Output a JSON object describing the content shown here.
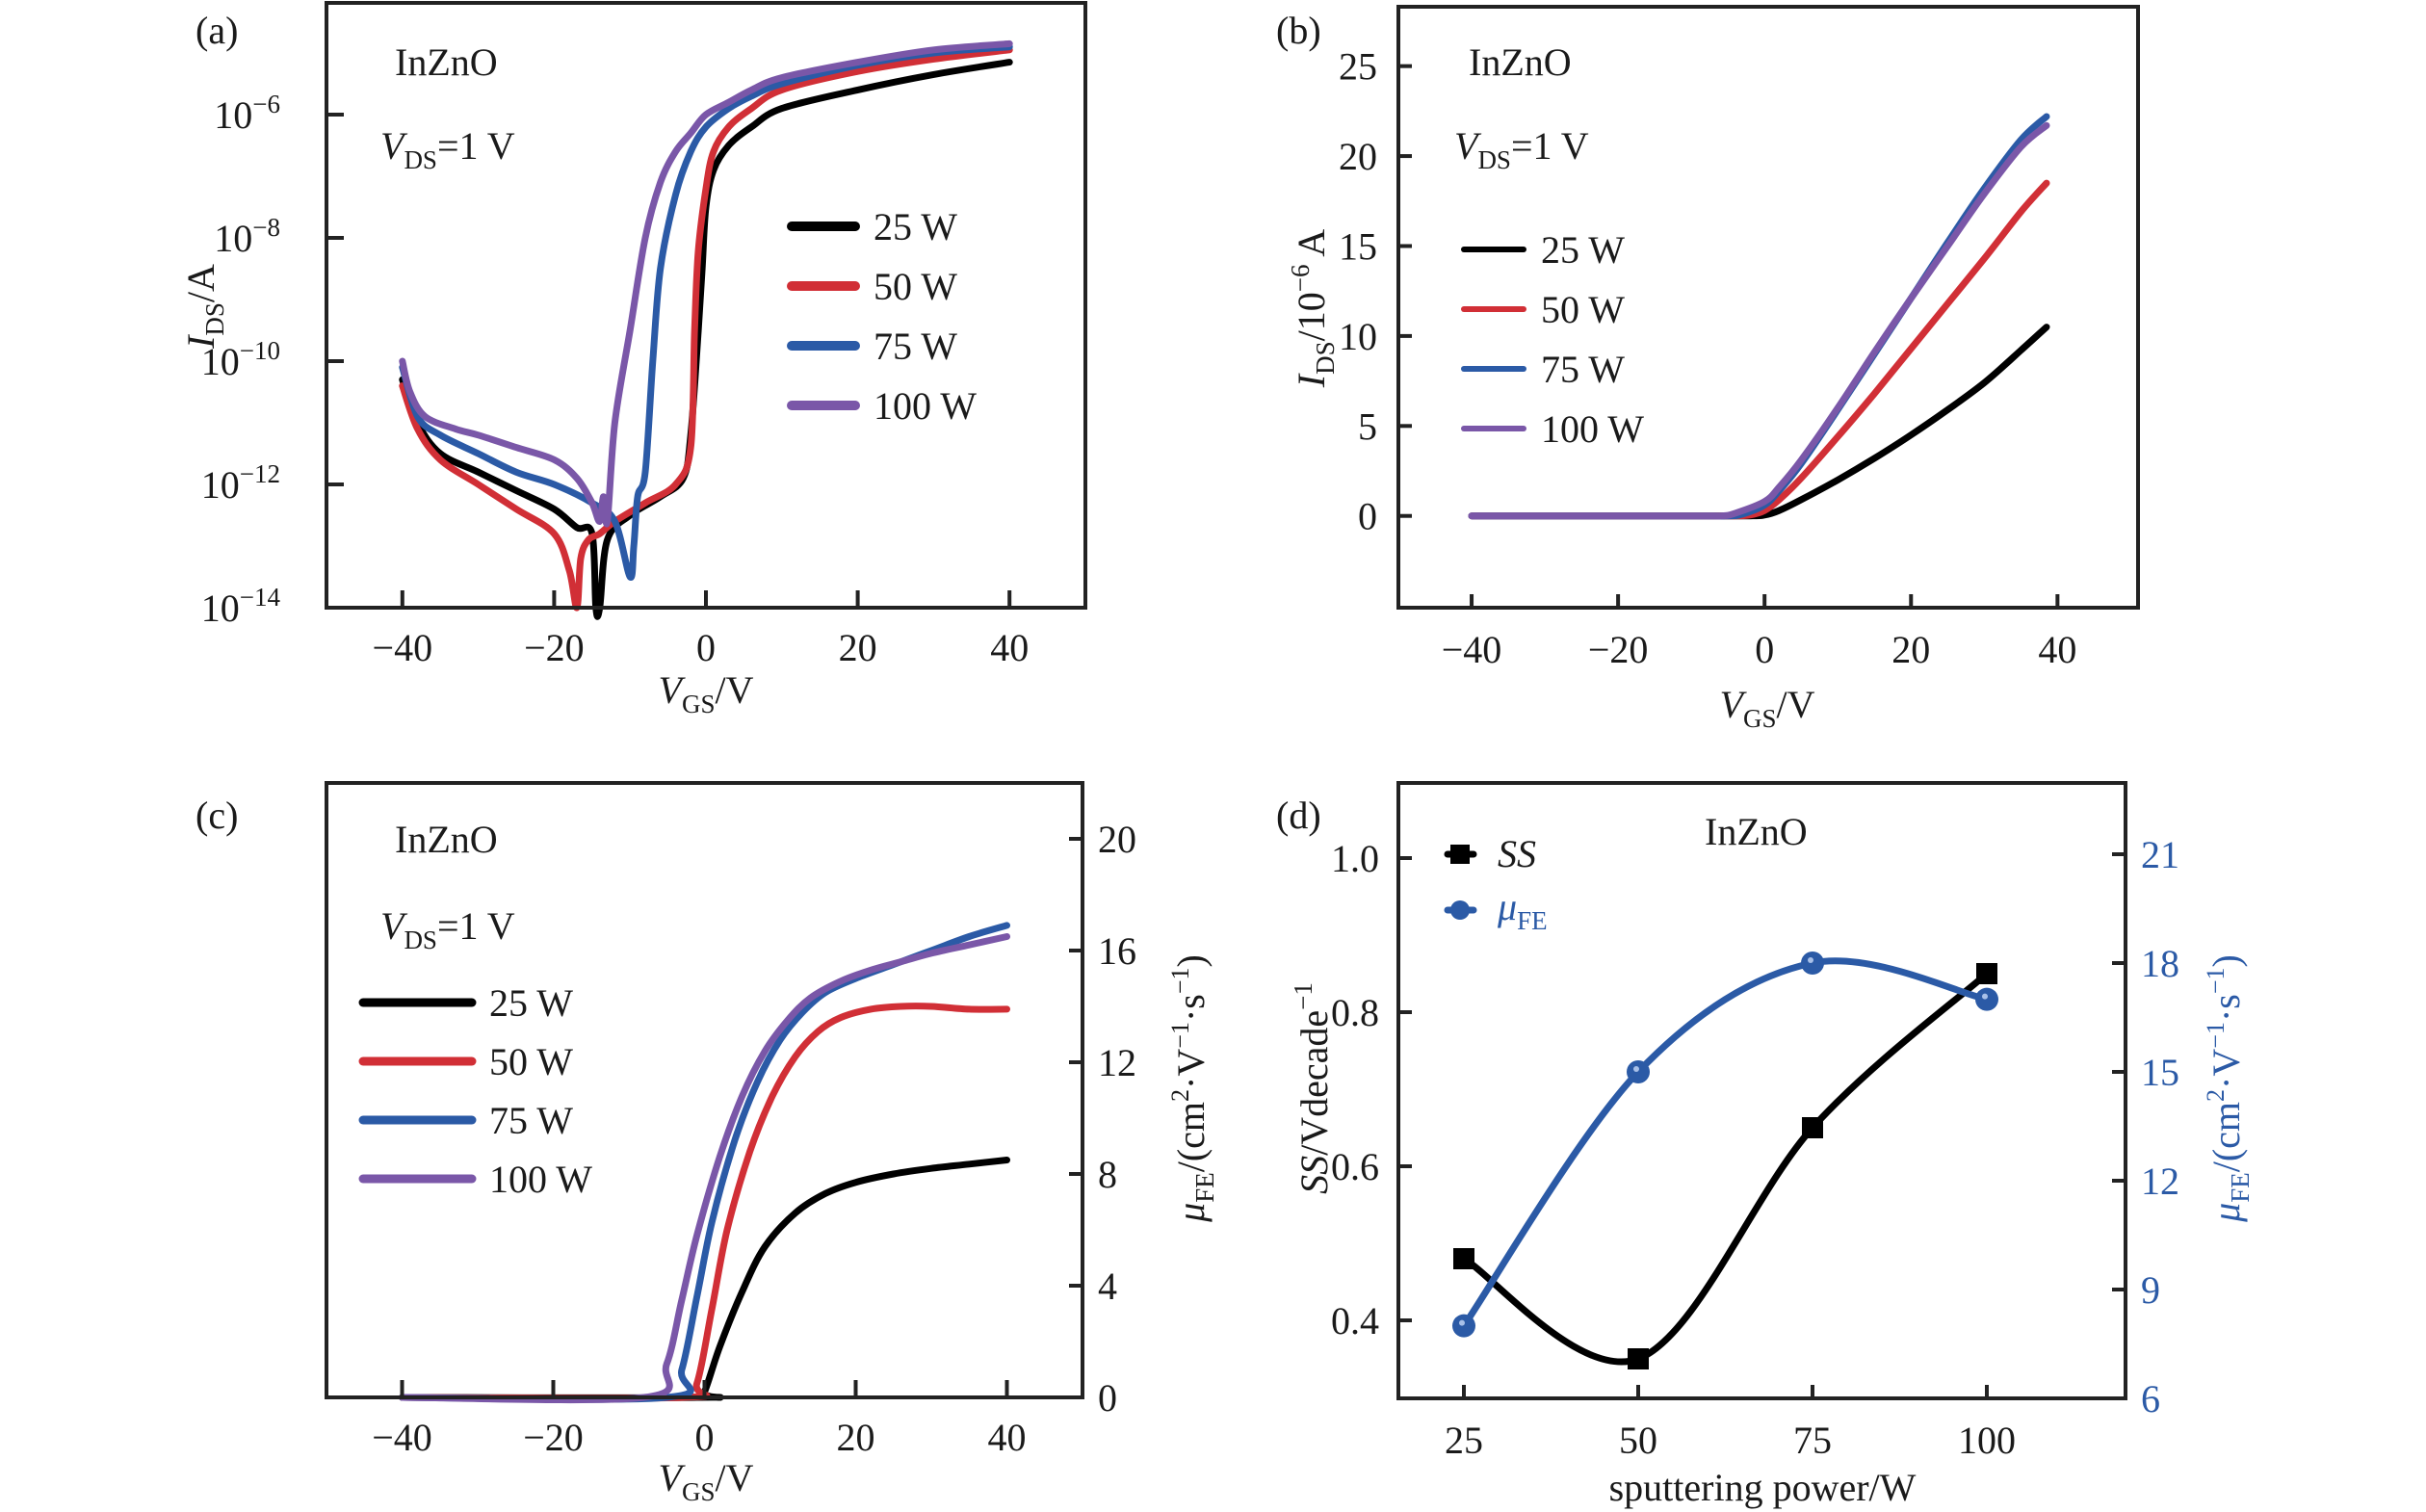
{
  "figure": {
    "colors": {
      "25 W": "#000000",
      "50 W": "#d12f36",
      "75 W": "#2b5aa6",
      "100 W": "#7a57a8",
      "ss": "#000000",
      "mu": "#2b5aa6"
    }
  },
  "chart_data": [
    {
      "panel": "(a)",
      "type": "line",
      "title": "",
      "annotations": [
        "InZnO",
        "V_DS=1 V"
      ],
      "xlabel": "V_GS/V",
      "ylabel": "I_DS/A",
      "yscale": "log",
      "xlim": [
        -50,
        50
      ],
      "ylim": [
        1e-14,
        1.3e-05
      ],
      "xticks": [
        -40,
        -20,
        0,
        20,
        40
      ],
      "yticks": [
        "10^-14",
        "10^-12",
        "10^-10",
        "10^-8",
        "10^-6"
      ],
      "ytick_values": [
        -14,
        -12,
        -10,
        -8,
        -6
      ],
      "legend": [
        "25 W",
        "50 W",
        "75 W",
        "100 W"
      ],
      "legend_position": "center-right",
      "series": [
        {
          "name": "25 W",
          "x": [
            -40,
            -38,
            -35,
            -30,
            -25,
            -20,
            -17,
            -15,
            -14.5,
            -14,
            -13,
            -10,
            -6,
            -3,
            -2,
            -1,
            -0.5,
            0,
            1,
            3,
            6,
            10,
            20,
            30,
            40
          ],
          "log10_y": [
            -10.3,
            -11.0,
            -11.5,
            -11.8,
            -12.1,
            -12.4,
            -12.7,
            -12.8,
            -14,
            -14,
            -12.9,
            -12.5,
            -12.2,
            -11.9,
            -11.2,
            -9.5,
            -8.5,
            -7.5,
            -6.9,
            -6.5,
            -6.2,
            -5.9,
            -5.6,
            -5.35,
            -5.15
          ]
        },
        {
          "name": "50 W",
          "x": [
            -40,
            -38,
            -35,
            -30,
            -25,
            -20,
            -18,
            -17,
            -16.5,
            -15.5,
            -14,
            -12,
            -8,
            -4,
            -2,
            -1.5,
            -1,
            0,
            1,
            3,
            6,
            10,
            20,
            30,
            40
          ],
          "log10_y": [
            -10.4,
            -11.1,
            -11.6,
            -12.0,
            -12.4,
            -12.8,
            -13.4,
            -14,
            -13.2,
            -12.9,
            -12.8,
            -12.6,
            -12.3,
            -12.0,
            -11.4,
            -9.5,
            -8.2,
            -7.2,
            -6.6,
            -6.2,
            -5.9,
            -5.6,
            -5.3,
            -5.1,
            -4.95
          ]
        },
        {
          "name": "75 W",
          "x": [
            -40,
            -38,
            -35,
            -30,
            -25,
            -20,
            -15,
            -12,
            -10,
            -9.5,
            -9,
            -8,
            -7,
            -6,
            -4,
            -2,
            0,
            3,
            6,
            10,
            20,
            30,
            40
          ],
          "log10_y": [
            -10.1,
            -10.9,
            -11.2,
            -11.5,
            -11.8,
            -12.0,
            -12.3,
            -12.6,
            -13.5,
            -13.0,
            -12.2,
            -11.8,
            -10.0,
            -8.5,
            -7.3,
            -6.6,
            -6.2,
            -5.9,
            -5.7,
            -5.5,
            -5.2,
            -5.0,
            -4.9
          ]
        },
        {
          "name": "100 W",
          "x": [
            -40,
            -39,
            -37,
            -33,
            -30,
            -25,
            -20,
            -17,
            -15,
            -14,
            -13.5,
            -13,
            -12,
            -10,
            -8,
            -6,
            -4,
            -2,
            0,
            3,
            6,
            10,
            20,
            30,
            40
          ],
          "log10_y": [
            -10.0,
            -10.5,
            -10.9,
            -11.1,
            -11.2,
            -11.4,
            -11.6,
            -11.9,
            -12.3,
            -12.6,
            -12.2,
            -12.6,
            -11.0,
            -9.5,
            -8.0,
            -7.1,
            -6.6,
            -6.3,
            -6.0,
            -5.8,
            -5.6,
            -5.4,
            -5.15,
            -4.95,
            -4.85
          ]
        }
      ]
    },
    {
      "panel": "(b)",
      "type": "line",
      "title": "",
      "annotations": [
        "InZnO",
        "V_DS=1 V"
      ],
      "xlabel": "V_GS/V",
      "ylabel": "I_DS/10^-6 A",
      "xlim": [
        -50,
        51
      ],
      "ylim": [
        -5.1,
        28.3
      ],
      "xticks": [
        -40,
        -20,
        0,
        20,
        40
      ],
      "yticks": [
        0,
        5,
        10,
        15,
        20,
        25
      ],
      "legend": [
        "25 W",
        "50 W",
        "75 W",
        "100 W"
      ],
      "legend_position": "center-left",
      "series": [
        {
          "name": "25 W",
          "x": [
            -40,
            -10,
            -2,
            0,
            2,
            5,
            10,
            15,
            20,
            25,
            30,
            35,
            38.5
          ],
          "values": [
            0,
            0,
            0,
            0.05,
            0.3,
            0.9,
            2.0,
            3.2,
            4.5,
            5.9,
            7.4,
            9.2,
            10.5
          ]
        },
        {
          "name": "50 W",
          "x": [
            -40,
            -10,
            -4,
            -2,
            0,
            2,
            5,
            10,
            15,
            20,
            25,
            30,
            35,
            38.5
          ],
          "values": [
            0,
            0,
            0,
            0.05,
            0.3,
            0.9,
            2.1,
            4.4,
            6.8,
            9.3,
            11.8,
            14.3,
            16.9,
            18.5
          ]
        },
        {
          "name": "75 W",
          "x": [
            -40,
            -10,
            -5,
            -3,
            0,
            2,
            5,
            10,
            15,
            20,
            25,
            30,
            35,
            38.5
          ],
          "values": [
            0,
            0,
            0,
            0.1,
            0.6,
            1.4,
            2.9,
            5.9,
            9.0,
            12.1,
            15.2,
            18.2,
            20.9,
            22.2
          ]
        },
        {
          "name": "100 W",
          "x": [
            -40,
            -10,
            -6,
            -4,
            0,
            2,
            5,
            10,
            15,
            20,
            25,
            30,
            35,
            38.5
          ],
          "values": [
            0,
            0,
            0,
            0.15,
            0.8,
            1.6,
            3.1,
            6.0,
            9.1,
            12.1,
            15.0,
            17.9,
            20.5,
            21.7
          ]
        }
      ]
    },
    {
      "panel": "(c)",
      "type": "line",
      "title": "",
      "annotations": [
        "InZnO",
        "V_DS=1 V"
      ],
      "xlabel": "V_GS/V",
      "ylabel": "μ_FE/(cm²·V⁻¹·s⁻¹)",
      "y_axis_side": "right",
      "xlim": [
        -50,
        50
      ],
      "ylim": [
        0,
        22
      ],
      "xticks": [
        -40,
        -20,
        0,
        20,
        40
      ],
      "yticks": [
        0,
        4,
        8,
        12,
        16,
        20
      ],
      "legend": [
        "25 W",
        "50 W",
        "75 W",
        "100 W"
      ],
      "legend_position": "center-left",
      "series": [
        {
          "name": "25 W",
          "x": [
            -40,
            -1,
            0,
            2,
            5,
            8,
            12,
            16,
            20,
            25,
            30,
            35,
            40
          ],
          "values": [
            0,
            0,
            0.2,
            1.8,
            3.8,
            5.4,
            6.6,
            7.3,
            7.7,
            8.0,
            8.2,
            8.35,
            8.5
          ]
        },
        {
          "name": "50 W",
          "x": [
            -40,
            -3,
            -1,
            1,
            3,
            6,
            9,
            12,
            15,
            18,
            22,
            26,
            30,
            35,
            40
          ],
          "values": [
            0,
            0,
            0.5,
            3.2,
            6.0,
            8.8,
            10.8,
            12.2,
            13.1,
            13.6,
            13.9,
            14.0,
            14.0,
            13.9,
            13.9
          ]
        },
        {
          "name": "75 W",
          "x": [
            -40,
            -5,
            -3,
            -1,
            1,
            4,
            7,
            10,
            13,
            16,
            20,
            25,
            30,
            35,
            40
          ],
          "values": [
            0,
            0,
            1.0,
            3.6,
            6.3,
            9.2,
            11.3,
            12.8,
            13.8,
            14.5,
            15.0,
            15.5,
            16.0,
            16.5,
            16.9
          ]
        },
        {
          "name": "100 W",
          "x": [
            -40,
            -8,
            -5,
            -3,
            -1,
            2,
            5,
            8,
            11,
            14,
            18,
            22,
            26,
            30,
            35,
            40
          ],
          "values": [
            0,
            0,
            1.2,
            3.5,
            5.8,
            8.6,
            10.8,
            12.4,
            13.5,
            14.3,
            14.9,
            15.3,
            15.6,
            15.9,
            16.2,
            16.5
          ]
        }
      ]
    },
    {
      "panel": "(d)",
      "type": "line",
      "title": "",
      "annotations": [
        "InZnO"
      ],
      "xlabel": "sputtering power/W",
      "ylabel": "SS/Vdecade⁻¹",
      "ylabel_right": "μ_FE/(cm²·V⁻¹·s⁻¹)",
      "xlim": [
        15,
        120
      ],
      "ylim": [
        0.3,
        1.1
      ],
      "ylim_right": [
        6,
        23
      ],
      "xticks": [
        25,
        50,
        75,
        100
      ],
      "yticks": [
        0.4,
        0.6,
        0.8,
        1.0
      ],
      "yticks_right": [
        6,
        9,
        12,
        15,
        18,
        21
      ],
      "legend": [
        "SS",
        "μ_FE"
      ],
      "legend_position": "top-left",
      "series": [
        {
          "name": "SS",
          "axis": "left",
          "marker": "square",
          "x": [
            25,
            50,
            75,
            100
          ],
          "values": [
            0.48,
            0.35,
            0.65,
            0.85
          ]
        },
        {
          "name": "μ_FE",
          "axis": "right",
          "marker": "circle",
          "x": [
            25,
            50,
            75,
            100
          ],
          "values": [
            8.0,
            15.0,
            18.0,
            17.0
          ]
        }
      ]
    }
  ],
  "labels": {
    "a": {
      "panel": "(a)",
      "material": "InZnO",
      "vds_main": "V",
      "vds_sub": "DS",
      "vds_rest": "=1 V",
      "xlab_main": "V",
      "xlab_sub": "GS",
      "xlab_rest": "/V",
      "ylab_main": "I",
      "ylab_sub": "DS",
      "ylab_rest": "/A",
      "legend": [
        "25 W",
        "50 W",
        "75 W",
        "100 W"
      ],
      "xticks": [
        "−40",
        "−20",
        "0",
        "20",
        "40"
      ],
      "yticks_base": [
        "10",
        "10",
        "10",
        "10",
        "10"
      ],
      "yticks_exp": [
        "−14",
        "−12",
        "−10",
        "−8",
        "−6"
      ]
    },
    "b": {
      "panel": "(b)",
      "material": "InZnO",
      "vds_main": "V",
      "vds_sub": "DS",
      "vds_rest": "=1 V",
      "xlab_main": "V",
      "xlab_sub": "GS",
      "xlab_rest": "/V",
      "ylab_main": "I",
      "ylab_sub": "DS",
      "ylab_rest": "/10",
      "ylab_exp": "−6",
      "ylab_unit": " A",
      "legend": [
        "25 W",
        "50 W",
        "75 W",
        "100 W"
      ],
      "xticks": [
        "−40",
        "−20",
        "0",
        "20",
        "40"
      ],
      "yticks": [
        "0",
        "5",
        "10",
        "15",
        "20",
        "25"
      ]
    },
    "c": {
      "panel": "(c)",
      "material": "InZnO",
      "vds_main": "V",
      "vds_sub": "DS",
      "vds_rest": "=1 V",
      "xlab_main": "V",
      "xlab_sub": "GS",
      "xlab_rest": "/V",
      "ylab_main": "μ",
      "ylab_sub": "FE",
      "ylab_rest": "/(cm",
      "ylab_sup1": "2",
      "ylab_mid": "·V",
      "ylab_sup2": "−1",
      "ylab_mid2": "·s",
      "ylab_sup3": "−1",
      "ylab_end": ")",
      "legend": [
        "25 W",
        "50 W",
        "75 W",
        "100 W"
      ],
      "xticks": [
        "−40",
        "−20",
        "0",
        "20",
        "40"
      ],
      "yticks": [
        "0",
        "4",
        "8",
        "12",
        "16",
        "20"
      ]
    },
    "d": {
      "panel": "(d)",
      "material": "InZnO",
      "xlab": "sputtering power/W",
      "ylab_main": "SS",
      "ylab_rest": "/Vdecade",
      "ylab_exp": "−1",
      "ylab2_main": "μ",
      "ylab2_sub": "FE",
      "ylab2_rest": "/(cm",
      "ylab2_sup1": "2",
      "ylab2_mid": "·V",
      "ylab2_sup2": "−1",
      "ylab2_mid2": "·s",
      "ylab2_sup3": "−1",
      "ylab2_end": ")",
      "legend_ss": "SS",
      "legend_mu_main": "μ",
      "legend_mu_sub": "FE",
      "xticks": [
        "25",
        "50",
        "75",
        "100"
      ],
      "yticks": [
        "0.4",
        "0.6",
        "0.8",
        "1.0"
      ],
      "yticks_right": [
        "6",
        "9",
        "12",
        "15",
        "18",
        "21"
      ]
    }
  }
}
